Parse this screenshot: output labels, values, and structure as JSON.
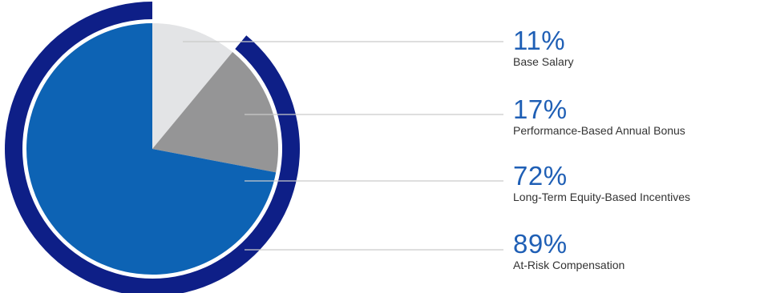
{
  "chart_data": {
    "type": "pie",
    "slices": [
      {
        "label": "Base Salary",
        "value": 11,
        "display": "11%",
        "color": "#e3e4e6"
      },
      {
        "label": "Performance-Based Annual Bonus",
        "value": 17,
        "display": "17%",
        "color": "#959596"
      },
      {
        "label": "Long-Term Equity-Based Incentives",
        "value": 72,
        "display": "72%",
        "color": "#0d63b4"
      }
    ],
    "outer_ring": {
      "label": "At-Risk Compensation",
      "value": 89,
      "display": "89%",
      "color": "#0e1f87"
    }
  }
}
